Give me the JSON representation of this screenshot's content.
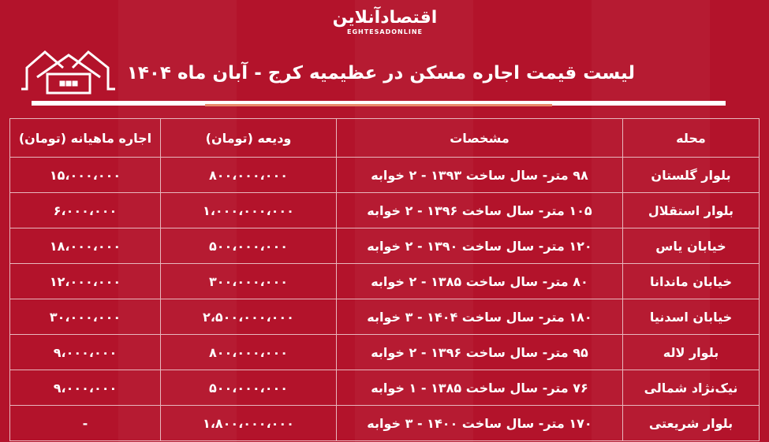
{
  "logo": {
    "fa": "اقتصادآنلاین",
    "en": "EGHTESADONLINE"
  },
  "title": "لیست قیمت اجاره مسکن در عظیمیه کرج - آبان ماه ۱۴۰۴",
  "icons": {
    "house": "house-icon"
  },
  "colors": {
    "background": "#b3132b",
    "accent": "#e98a6a"
  },
  "table": {
    "headers": [
      "محله",
      "مشخصات",
      "ودیعه (تومان)",
      "اجاره ماهیانه (تومان)"
    ],
    "rows": [
      [
        "بلوار گلستان",
        "۹۸ متر- سال ساخت ۱۳۹۳ - ۲ خوابه",
        "۸۰۰،۰۰۰،۰۰۰",
        "۱۵،۰۰۰،۰۰۰"
      ],
      [
        "بلوار استقلال",
        "۱۰۵ متر- سال ساخت ۱۳۹۶ - ۲ خوابه",
        "۱،۰۰۰،۰۰۰،۰۰۰",
        "۶،۰۰۰،۰۰۰"
      ],
      [
        "خیابان یاس",
        "۱۲۰ متر- سال ساخت ۱۳۹۰ - ۲ خوابه",
        "۵۰۰،۰۰۰،۰۰۰",
        "۱۸،۰۰۰،۰۰۰"
      ],
      [
        "خیابان ماندانا",
        "۸۰ متر- سال ساخت ۱۳۸۵ - ۲ خوابه",
        "۳۰۰،۰۰۰،۰۰۰",
        "۱۲،۰۰۰،۰۰۰"
      ],
      [
        "خیابان اسدنیا",
        "۱۸۰ متر- سال ساخت ۱۴۰۴ - ۳ خوابه",
        "۲،۵۰۰،۰۰۰،۰۰۰",
        "۳۰،۰۰۰،۰۰۰"
      ],
      [
        "بلوار لاله",
        "۹۵ متر- سال ساخت ۱۳۹۶ - ۲ خوابه",
        "۸۰۰،۰۰۰،۰۰۰",
        "۹،۰۰۰،۰۰۰"
      ],
      [
        "نیک‌نژاد شمالی",
        "۷۶ متر- سال ساخت ۱۳۸۵ - ۱ خوابه",
        "۵۰۰،۰۰۰،۰۰۰",
        "۹،۰۰۰،۰۰۰"
      ],
      [
        "بلوار شریعتی",
        "۱۷۰ متر- سال ساخت ۱۴۰۰ - ۳ خوابه",
        "۱،۸۰۰،۰۰۰،۰۰۰",
        "-"
      ]
    ]
  }
}
